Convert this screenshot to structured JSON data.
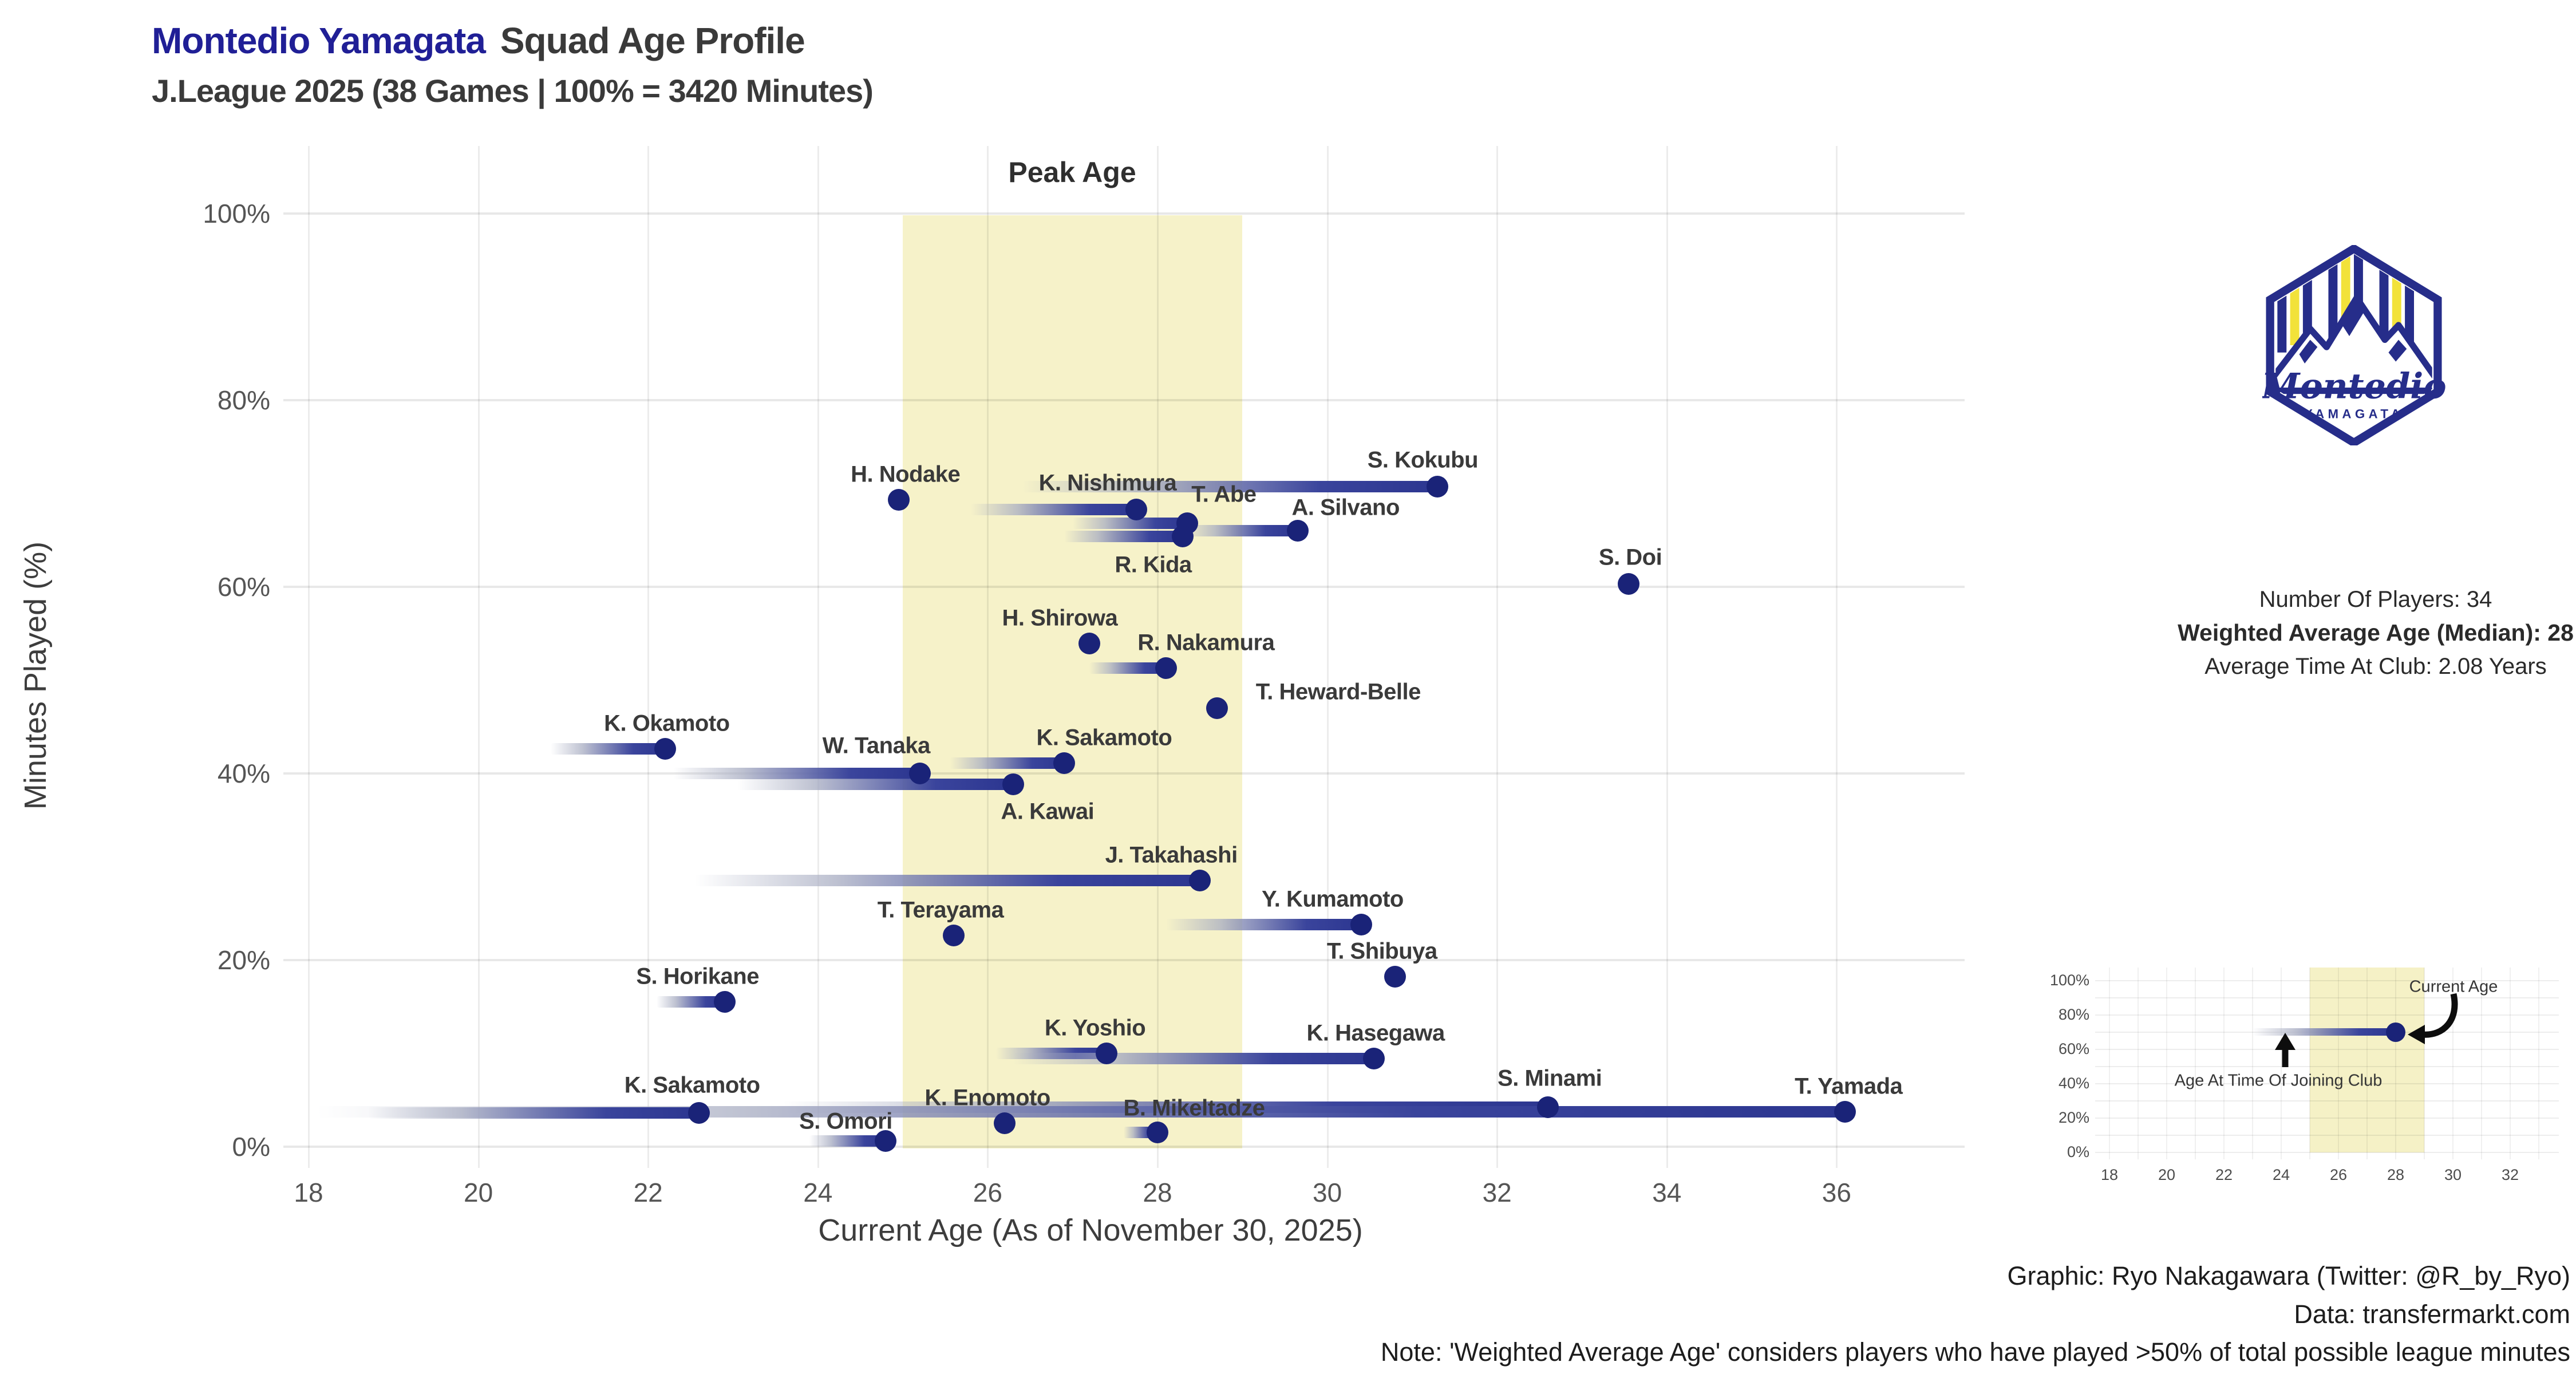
{
  "header": {
    "brand": "Montedio Yamagata",
    "title": "Squad Age Profile",
    "subtitle": "J.League 2025 (38 Games | 100% = 3420 Minutes)"
  },
  "chart_data": {
    "type": "scatter",
    "title": "Montedio Yamagata Squad Age Profile",
    "xlabel": "Current Age (As of November 30, 2025)",
    "ylabel": "Minutes Played (%)",
    "x_ticks": [
      18,
      20,
      22,
      24,
      26,
      28,
      30,
      32,
      34,
      36
    ],
    "y_ticks": [
      0,
      20,
      40,
      60,
      80,
      100
    ],
    "y_tick_suffix": "%",
    "xlim": [
      17.7,
      37.5
    ],
    "ylim": [
      0,
      100
    ],
    "grid": "on",
    "peak_band": {
      "from": 25,
      "to": 29,
      "label": "Peak Age"
    },
    "series_note": "each player: segment from age at joining club to current age at their share of minutes played",
    "series": [
      {
        "name": "S. Kokubu",
        "join_age": 26.4,
        "current_age": 31.3,
        "minutes_pct": 70.7,
        "dx": -26,
        "dy": -46
      },
      {
        "name": "H. Nodake",
        "join_age": 24.95,
        "current_age": 24.95,
        "minutes_pct": 69.3,
        "dx": 12,
        "dy": -44
      },
      {
        "name": "K. Nishimura",
        "join_age": 25.8,
        "current_age": 27.75,
        "minutes_pct": 68.3,
        "dx": -50,
        "dy": -46
      },
      {
        "name": "T. Abe",
        "join_age": 27.0,
        "current_age": 28.35,
        "minutes_pct": 66.8,
        "dx": 64,
        "dy": -50
      },
      {
        "name": "R. Kida",
        "join_age": 26.9,
        "current_age": 28.3,
        "minutes_pct": 65.4,
        "dx": -52,
        "dy": 50
      },
      {
        "name": "A. Silvano",
        "join_age": 28.3,
        "current_age": 29.65,
        "minutes_pct": 66.0,
        "dx": 84,
        "dy": -40
      },
      {
        "name": "S. Doi",
        "join_age": 33.55,
        "current_age": 33.55,
        "minutes_pct": 60.3,
        "dx": 3,
        "dy": -46
      },
      {
        "name": "H. Shirowa",
        "join_age": 27.2,
        "current_age": 27.2,
        "minutes_pct": 53.9,
        "dx": -52,
        "dy": -44
      },
      {
        "name": "R. Nakamura",
        "join_age": 27.2,
        "current_age": 28.1,
        "minutes_pct": 51.3,
        "dx": 70,
        "dy": -44
      },
      {
        "name": "T. Heward-Belle",
        "join_age": 28.7,
        "current_age": 28.7,
        "minutes_pct": 47.0,
        "dx": 212,
        "dy": -28
      },
      {
        "name": "K. Okamoto",
        "join_age": 20.85,
        "current_age": 22.2,
        "minutes_pct": 42.6,
        "dx": 3,
        "dy": -44
      },
      {
        "name": "K. Sakamoto",
        "join_age": 25.55,
        "current_age": 26.9,
        "minutes_pct": 41.1,
        "dx": 70,
        "dy": -44
      },
      {
        "name": "W. Tanaka",
        "join_age": 22.3,
        "current_age": 25.2,
        "minutes_pct": 40.0,
        "dx": -76,
        "dy": -48
      },
      {
        "name": "A. Kawai",
        "join_age": 23.05,
        "current_age": 26.3,
        "minutes_pct": 38.8,
        "dx": 60,
        "dy": 48
      },
      {
        "name": "J. Takahashi",
        "join_age": 22.55,
        "current_age": 28.5,
        "minutes_pct": 28.5,
        "dx": -50,
        "dy": -44
      },
      {
        "name": "Y. Kumamoto",
        "join_age": 28.1,
        "current_age": 30.4,
        "minutes_pct": 23.8,
        "dx": -50,
        "dy": -44
      },
      {
        "name": "T. Terayama",
        "join_age": 25.6,
        "current_age": 25.6,
        "minutes_pct": 22.6,
        "dx": -23,
        "dy": -44
      },
      {
        "name": "T. Shibuya",
        "join_age": 30.8,
        "current_age": 30.8,
        "minutes_pct": 18.2,
        "dx": -23,
        "dy": -44
      },
      {
        "name": "S. Horikane",
        "join_age": 22.1,
        "current_age": 22.9,
        "minutes_pct": 15.5,
        "dx": -47,
        "dy": -44
      },
      {
        "name": "K. Yoshio",
        "join_age": 26.1,
        "current_age": 27.4,
        "minutes_pct": 10.0,
        "dx": -20,
        "dy": -44
      },
      {
        "name": "K. Hasegawa",
        "join_age": 26.3,
        "current_age": 30.55,
        "minutes_pct": 9.4,
        "dx": 3,
        "dy": -44
      },
      {
        "name": "S. Minami",
        "join_age": 23.6,
        "current_age": 32.6,
        "minutes_pct": 4.2,
        "dx": 3,
        "dy": -50
      },
      {
        "name": "T. Yamada",
        "join_age": 18.1,
        "current_age": 36.1,
        "minutes_pct": 3.7,
        "dx": 6,
        "dy": -44
      },
      {
        "name": "K. Sakamoto",
        "join_age": 18.7,
        "current_age": 22.6,
        "minutes_pct": 3.6,
        "dx": -12,
        "dy": -48
      },
      {
        "name": "K. Enomoto",
        "join_age": 26.2,
        "current_age": 26.2,
        "minutes_pct": 2.5,
        "dx": -30,
        "dy": -44
      },
      {
        "name": "B. Mikeltadze",
        "join_age": 27.6,
        "current_age": 28.0,
        "minutes_pct": 1.5,
        "dx": 64,
        "dy": -42
      },
      {
        "name": "S. Omori",
        "join_age": 23.9,
        "current_age": 24.8,
        "minutes_pct": 0.6,
        "dx": -70,
        "dy": -34
      }
    ]
  },
  "stats": {
    "line1": "Number Of Players: 34",
    "line2": "Weighted Average Age (Median): 28",
    "line3": "Average Time At Club: 2.08 Years"
  },
  "legend_chart": {
    "x_ticks": [
      18,
      20,
      22,
      24,
      26,
      28,
      30,
      32
    ],
    "y_ticks": [
      0,
      20,
      40,
      60,
      80,
      100
    ],
    "band": {
      "from": 25,
      "to": 29
    },
    "example": {
      "join_age": 23,
      "current_age": 28,
      "minutes_pct": 70
    },
    "labels": {
      "current": "Current Age",
      "join": "Age At Time Of Joining Club"
    }
  },
  "logo": {
    "name": "Montedio",
    "subname": "YAMAGATA"
  },
  "credits": {
    "line1": "Graphic: Ryo Nakagawara (Twitter: @R_by_Ryo)",
    "line2": "Data: transfermarkt.com",
    "line3": "Note: 'Weighted Average Age' considers players who have played >50% of total possible league minutes"
  },
  "colors": {
    "brand_navy": "#201f96",
    "dot_navy": "#1a2378",
    "tail_blue": "#2c3690",
    "peak_band_yellow": "#f5f1c6",
    "title_gray": "#3a3a3a"
  }
}
